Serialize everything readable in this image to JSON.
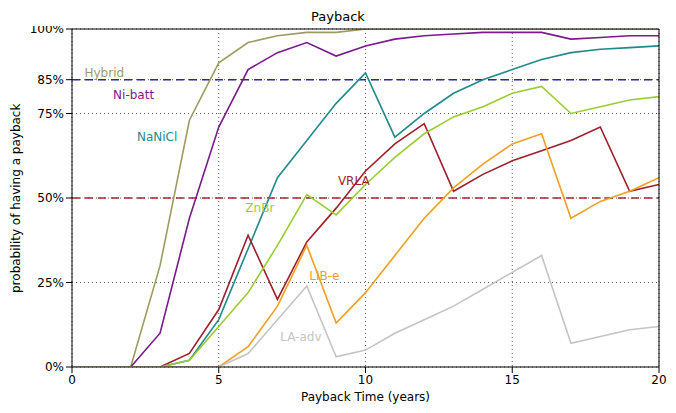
{
  "chart_data": {
    "type": "line",
    "title": "Payback",
    "x_label": "Payback Time (years)",
    "y_label": "probability of having a payback",
    "x": [
      0,
      1,
      2,
      3,
      4,
      5,
      6,
      7,
      8,
      9,
      10,
      11,
      12,
      13,
      14,
      15,
      16,
      17,
      18,
      19,
      20
    ],
    "xlim": [
      0,
      20
    ],
    "xticks": [
      0,
      5,
      10,
      15,
      20
    ],
    "ylim": [
      0,
      100
    ],
    "yticks": [
      {
        "value": 0,
        "label": "0%"
      },
      {
        "value": 25,
        "label": "25%"
      },
      {
        "value": 50,
        "label": "50%"
      },
      {
        "value": 75,
        "label": "75%"
      },
      {
        "value": 85,
        "label": "85%"
      },
      {
        "value": 100,
        "label": "100%"
      }
    ],
    "grid": true,
    "reference_lines": [
      {
        "value": 85,
        "color": "#2a2a9a",
        "line_style": "dashed"
      },
      {
        "value": 50,
        "color": "#b02030",
        "line_style": "dashed"
      }
    ],
    "series": [
      {
        "name": "Hybrid",
        "color": "#9c9c62",
        "label_x": 1.1,
        "label_y": 87,
        "values": [
          0,
          0,
          0,
          30,
          73,
          90,
          96,
          98,
          99,
          99,
          100,
          100,
          100,
          100,
          100,
          100,
          100,
          100,
          100,
          100,
          100
        ]
      },
      {
        "name": "Ni-batt",
        "color": "#7a1a8a",
        "label_x": 2.1,
        "label_y": 80.5,
        "values": [
          0,
          0,
          0,
          10,
          44,
          71,
          88,
          93,
          96,
          92,
          95,
          97,
          98,
          98.5,
          99,
          99,
          99,
          97,
          97.5,
          98,
          98
        ]
      },
      {
        "name": "NaNiCl",
        "color": "#1f8a8c",
        "label_x": 2.9,
        "label_y": 68,
        "values": [
          0,
          0,
          0,
          0,
          2,
          14,
          35,
          56,
          67,
          78,
          87,
          68,
          75,
          81,
          85,
          88,
          91,
          93,
          94,
          94.5,
          95
        ]
      },
      {
        "name": "VRLA",
        "color": "#9e1f2a",
        "label_x": 9.6,
        "label_y": 55,
        "values": [
          0,
          0,
          0,
          0,
          4,
          17,
          39,
          20,
          37,
          47,
          58,
          66,
          72,
          52,
          57,
          61,
          64,
          67,
          71,
          52,
          54
        ]
      },
      {
        "name": "ZnBr",
        "color": "#9acd32",
        "label_x": 6.4,
        "label_y": 47,
        "values": [
          0,
          0,
          0,
          0,
          2,
          12,
          22,
          36,
          51,
          45,
          54,
          62,
          69,
          74,
          77,
          81,
          83,
          75,
          77,
          79,
          80
        ]
      },
      {
        "name": "LIB-e",
        "color": "#f0a020",
        "label_x": 8.6,
        "label_y": 27,
        "values": [
          0,
          0,
          0,
          0,
          0,
          0,
          6,
          18,
          36,
          13,
          22,
          33,
          44,
          53,
          60,
          66,
          69,
          44,
          49,
          52,
          56
        ]
      },
      {
        "name": "LA-adv",
        "color": "#c4c4c4",
        "label_x": 7.8,
        "label_y": 9,
        "values": [
          0,
          0,
          0,
          0,
          0,
          0,
          4,
          14,
          24,
          3,
          5,
          10,
          14,
          18,
          23,
          28,
          33,
          7,
          9,
          11,
          12
        ]
      }
    ]
  }
}
